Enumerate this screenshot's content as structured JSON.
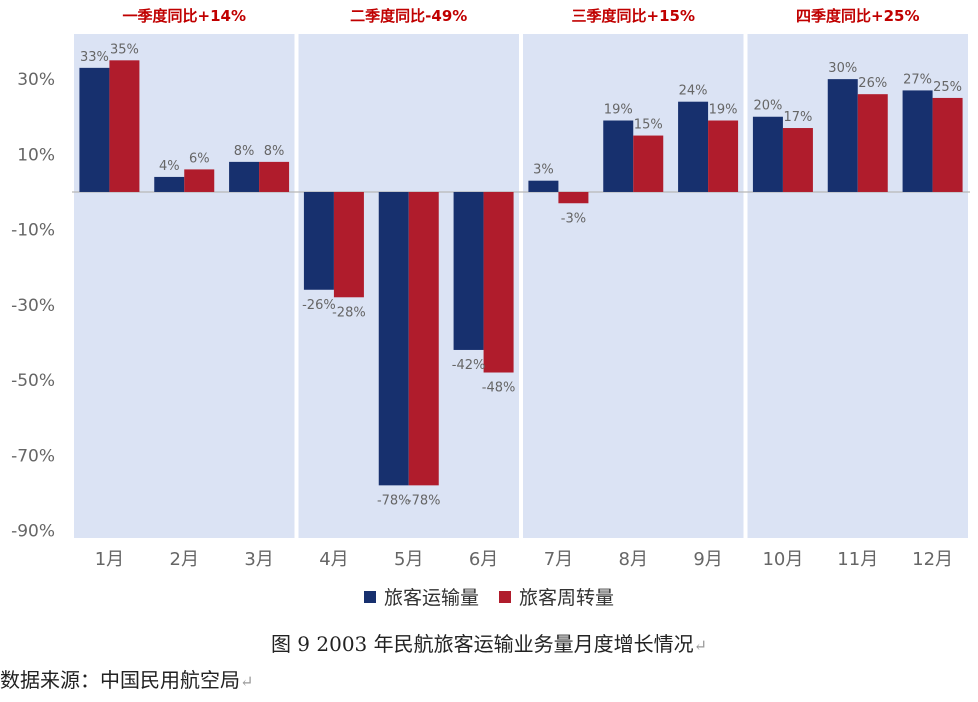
{
  "chart_data": {
    "type": "bar",
    "categories": [
      "1月",
      "2月",
      "3月",
      "4月",
      "5月",
      "6月",
      "7月",
      "8月",
      "9月",
      "10月",
      "11月",
      "12月"
    ],
    "series": [
      {
        "name": "旅客运输量",
        "values": [
          33,
          4,
          8,
          -26,
          -78,
          -42,
          3,
          19,
          24,
          20,
          30,
          27
        ],
        "labels": [
          "33%",
          "4%",
          "8%",
          "-26%",
          "-78%",
          "-42%",
          "3%",
          "19%",
          "24%",
          "20%",
          "30%",
          "27%"
        ]
      },
      {
        "name": "旅客周转量",
        "values": [
          35,
          6,
          8,
          -28,
          -78,
          -48,
          -3,
          15,
          19,
          17,
          26,
          25
        ],
        "labels": [
          "35%",
          "6%",
          "8%",
          "-28%",
          "-78%",
          "-48%",
          "-3%",
          "15%",
          "19%",
          "17%",
          "26%",
          "25%"
        ]
      }
    ],
    "y_ticks": [
      30,
      10,
      -10,
      -30,
      -50,
      -70,
      -90
    ],
    "y_tick_labels": [
      "30%",
      "10%",
      "-10%",
      "-30%",
      "-50%",
      "-70%",
      "-90%"
    ],
    "ylim": [
      -92,
      42
    ],
    "quarters": [
      {
        "label": "一季度同比+14%",
        "months": [
          0,
          2
        ]
      },
      {
        "label": "二季度同比-49%",
        "months": [
          3,
          5
        ]
      },
      {
        "label": "三季度同比+15%",
        "months": [
          6,
          8
        ]
      },
      {
        "label": "四季度同比+25%",
        "months": [
          9,
          11
        ]
      }
    ],
    "colors": {
      "series1": "#17306e",
      "series2": "#b01c2c",
      "quarter_bg": "#dbe3f4",
      "label_red": "#c00000"
    },
    "legend_position": "bottom",
    "grid": false
  },
  "caption": "图 9 2003 年民航旅客运输业务量月度增长情况",
  "source": "数据来源：中国民用航空局",
  "return_mark": "↵"
}
